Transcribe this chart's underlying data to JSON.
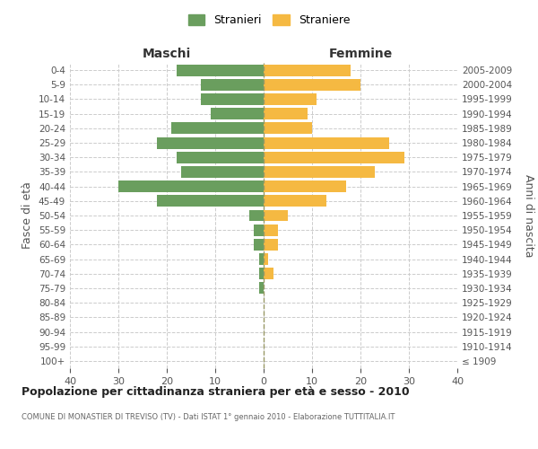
{
  "age_groups": [
    "100+",
    "95-99",
    "90-94",
    "85-89",
    "80-84",
    "75-79",
    "70-74",
    "65-69",
    "60-64",
    "55-59",
    "50-54",
    "45-49",
    "40-44",
    "35-39",
    "30-34",
    "25-29",
    "20-24",
    "15-19",
    "10-14",
    "5-9",
    "0-4"
  ],
  "birth_years": [
    "≤ 1909",
    "1910-1914",
    "1915-1919",
    "1920-1924",
    "1925-1929",
    "1930-1934",
    "1935-1939",
    "1940-1944",
    "1945-1949",
    "1950-1954",
    "1955-1959",
    "1960-1964",
    "1965-1969",
    "1970-1974",
    "1975-1979",
    "1980-1984",
    "1985-1989",
    "1990-1994",
    "1995-1999",
    "2000-2004",
    "2005-2009"
  ],
  "maschi": [
    0,
    0,
    0,
    0,
    0,
    1,
    1,
    1,
    2,
    2,
    3,
    22,
    30,
    17,
    18,
    22,
    19,
    11,
    13,
    13,
    18
  ],
  "femmine": [
    0,
    0,
    0,
    0,
    0,
    0,
    2,
    1,
    3,
    3,
    5,
    13,
    17,
    23,
    29,
    26,
    10,
    9,
    11,
    20,
    18
  ],
  "maschi_color": "#6a9e5e",
  "femmine_color": "#f5b942",
  "background_color": "#ffffff",
  "grid_color": "#cccccc",
  "title": "Popolazione per cittadinanza straniera per età e sesso - 2010",
  "subtitle": "COMUNE DI MONASTIER DI TREVISO (TV) - Dati ISTAT 1° gennaio 2010 - Elaborazione TUTTITALIA.IT",
  "xlabel_left": "Maschi",
  "xlabel_right": "Femmine",
  "ylabel_left": "Fasce di età",
  "ylabel_right": "Anni di nascita",
  "legend_maschi": "Stranieri",
  "legend_femmine": "Straniere",
  "xlim": 40,
  "bar_height": 0.8
}
